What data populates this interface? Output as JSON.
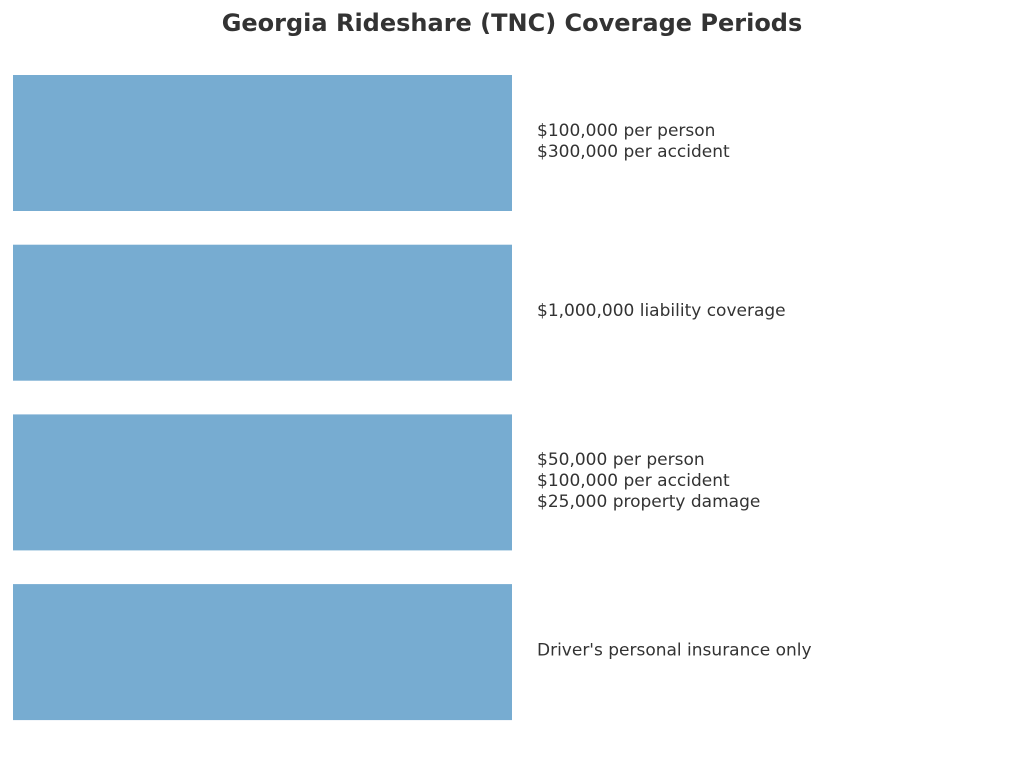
{
  "title": "Georgia Rideshare (TNC) Coverage Periods",
  "periods": [
    {
      "lines": [
        "$100,000 per person",
        "$300,000 per accident"
      ]
    },
    {
      "lines": [
        "$1,000,000 liability coverage"
      ]
    },
    {
      "lines": [
        "$50,000 per person",
        "$100,000 per accident",
        "$25,000 property damage"
      ]
    },
    {
      "lines": [
        "Driver's personal insurance only"
      ]
    }
  ]
}
